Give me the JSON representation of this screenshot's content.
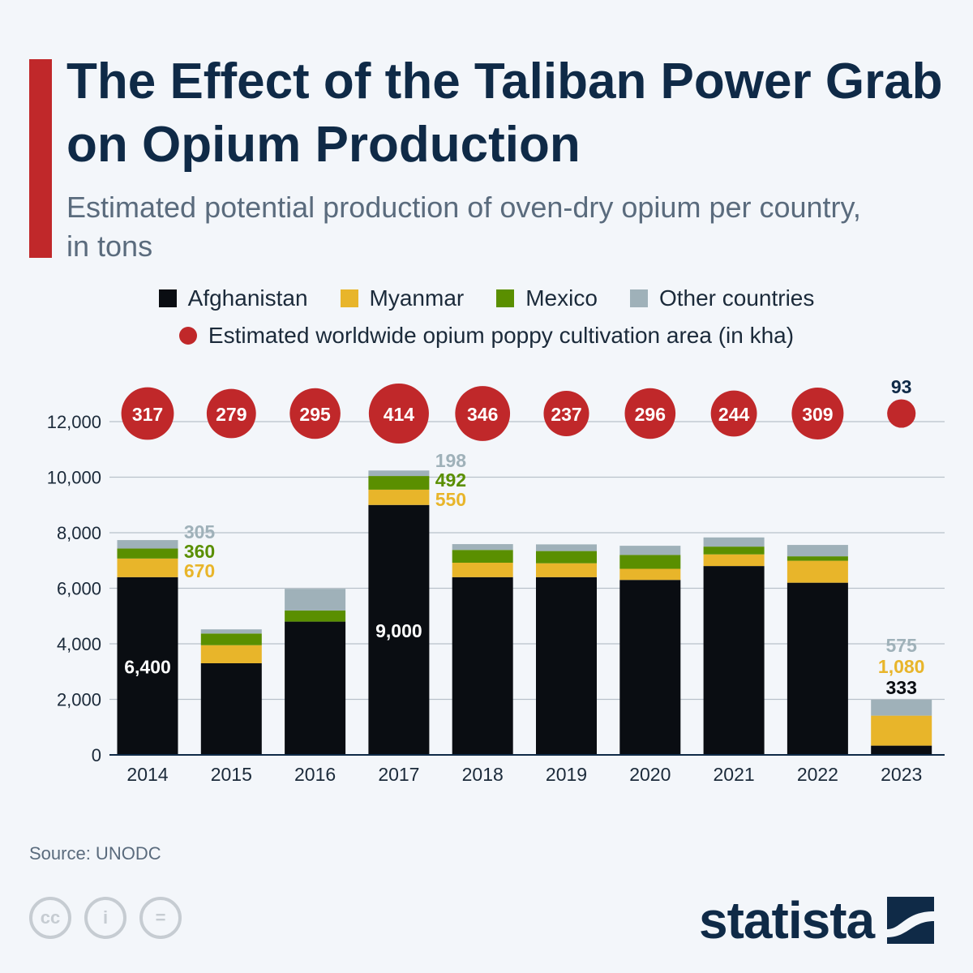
{
  "title": "The Effect of the Taliban Power Grab on Opium Production",
  "subtitle": "Estimated potential production of oven-dry opium per country, in tons",
  "source": "Source: UNODC",
  "brand": "statista",
  "colors": {
    "accent": "#c0282a",
    "afghanistan": "#0a0d12",
    "myanmar": "#e8b52a",
    "mexico": "#5a8f00",
    "other": "#9fb1b9",
    "title": "#0f2a47"
  },
  "icons": [
    "cc-icon",
    "attribution-icon",
    "no-derivatives-icon",
    "statista-logo-icon"
  ],
  "chart_data": {
    "type": "bar",
    "stacked": true,
    "categories": [
      "2014",
      "2015",
      "2016",
      "2017",
      "2018",
      "2019",
      "2020",
      "2021",
      "2022",
      "2023"
    ],
    "ylim": [
      0,
      12000
    ],
    "yticks": [
      "0",
      "2,000",
      "4,000",
      "6,000",
      "8,000",
      "10,000",
      "12,000"
    ],
    "ytick_values": [
      0,
      2000,
      4000,
      6000,
      8000,
      10000,
      12000
    ],
    "grid": true,
    "legend_placement": "top",
    "series": [
      {
        "name": "Afghanistan",
        "values": [
          6400,
          3300,
          4800,
          9000,
          6400,
          6400,
          6300,
          6800,
          6200,
          333
        ]
      },
      {
        "name": "Myanmar",
        "values": [
          670,
          650,
          0,
          550,
          520,
          500,
          400,
          420,
          790,
          1080
        ]
      },
      {
        "name": "Mexico",
        "values": [
          360,
          420,
          400,
          492,
          460,
          440,
          500,
          280,
          160,
          0
        ]
      },
      {
        "name": "Other countries",
        "values": [
          305,
          150,
          780,
          198,
          210,
          240,
          330,
          330,
          410,
          575
        ]
      }
    ],
    "bubble_series": {
      "name": "Estimated worldwide opium poppy cultivation area (in kha)",
      "values": [
        317,
        279,
        295,
        414,
        346,
        237,
        296,
        244,
        309,
        93
      ]
    },
    "data_labels": {
      "2014": {
        "afghanistan": "6,400",
        "myanmar": "670",
        "mexico": "360",
        "other": "305"
      },
      "2017": {
        "afghanistan": "9,000",
        "myanmar": "550",
        "mexico": "492",
        "other": "198"
      },
      "2023": {
        "afghanistan": "333",
        "myanmar": "1,080",
        "other": "575"
      }
    }
  }
}
